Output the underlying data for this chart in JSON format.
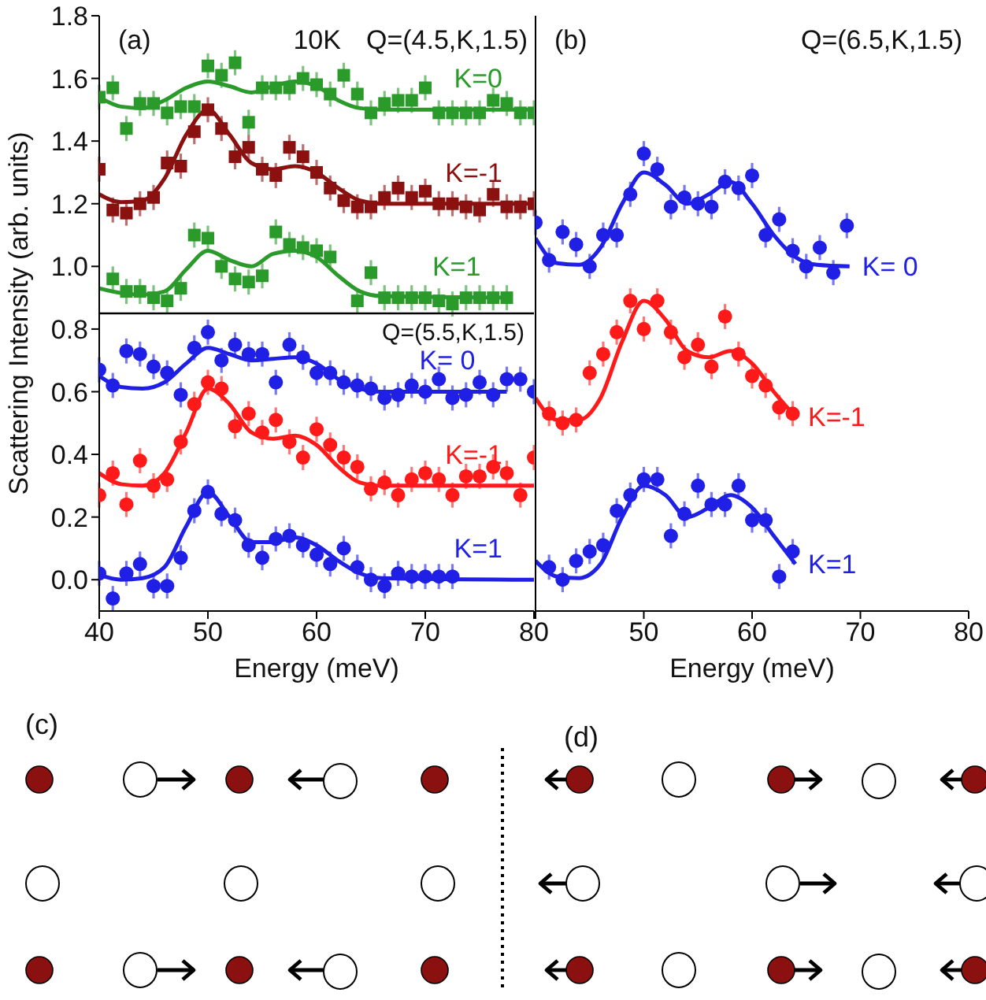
{
  "chart_data": [
    {
      "type": "scatter",
      "xlabel": "Energy (meV)",
      "ylabel": "Scattering Intensity (arb. units)",
      "xlim": [
        40,
        80
      ],
      "ylim": [
        -0.1,
        1.8
      ],
      "xticks": [
        40,
        50,
        60,
        70,
        80
      ],
      "yticks": [
        {
          "value": 0,
          "label": "0.0"
        },
        0.2,
        0.4,
        0.6,
        0.8,
        {
          "value": 1,
          "label": "1.0"
        },
        1.2,
        1.4,
        1.6,
        1.8
      ],
      "annotations": [
        "(a)",
        "10K",
        "Q=(4.5,K,1.5)"
      ],
      "ref_lines": [
        {
          "axis": "y",
          "value": 0.85,
          "label": "Q=(5.5,K,1.5)",
          "color": "#000000"
        }
      ],
      "series": [
        {
          "name": "K=0",
          "type": "scatter",
          "marker": "square",
          "color": "#2a9a2a",
          "x": [
            40,
            41.25,
            42.5,
            43.75,
            45,
            46.25,
            47.5,
            48.75,
            50,
            51.25,
            52.5,
            53.75,
            55,
            56.25,
            57.5,
            58.75,
            60,
            61.25,
            62.5,
            63.75,
            65,
            66.25,
            67.5,
            68.75,
            70,
            71.25,
            72.5,
            73.75,
            75,
            76.25,
            77.5,
            78.75,
            80
          ],
          "values": [
            1.54,
            1.57,
            1.44,
            1.52,
            1.52,
            1.49,
            1.51,
            1.51,
            1.64,
            1.61,
            1.65,
            1.46,
            1.57,
            1.57,
            1.57,
            1.6,
            1.58,
            1.55,
            1.61,
            1.55,
            1.49,
            1.52,
            1.53,
            1.53,
            1.57,
            1.49,
            1.49,
            1.49,
            1.49,
            1.53,
            1.52,
            1.49,
            1.49
          ],
          "errors": [
            0.04,
            0.04,
            0.04,
            0.04,
            0.04,
            0.04,
            0.04,
            0.04,
            0.04,
            0.04,
            0.04,
            0.04,
            0.04,
            0.04,
            0.04,
            0.04,
            0.04,
            0.04,
            0.04,
            0.04,
            0.04,
            0.04,
            0.04,
            0.04,
            0.04,
            0.04,
            0.04,
            0.04,
            0.04,
            0.04,
            0.04,
            0.04,
            0.04
          ]
        },
        {
          "type": "line",
          "color": "#2a9a2a",
          "x": [
            40,
            42,
            44,
            46,
            48,
            50,
            52,
            54,
            56,
            58,
            60,
            62,
            64,
            66,
            80
          ],
          "values": [
            1.54,
            1.51,
            1.505,
            1.53,
            1.57,
            1.59,
            1.575,
            1.555,
            1.575,
            1.59,
            1.575,
            1.53,
            1.505,
            1.5,
            1.5
          ]
        },
        {
          "name": "K=-1",
          "type": "scatter",
          "marker": "square",
          "color": "#8b1010",
          "x": [
            40,
            41.25,
            42.5,
            43.75,
            45,
            46.25,
            47.5,
            48.75,
            50,
            51.25,
            52.5,
            53.75,
            55,
            56.25,
            57.5,
            58.75,
            60,
            61.25,
            62.5,
            63.75,
            65,
            66.25,
            67.5,
            68.75,
            70,
            71.25,
            72.5,
            73.75,
            75,
            76.25,
            77.5,
            78.75,
            80
          ],
          "values": [
            1.31,
            1.18,
            1.17,
            1.2,
            1.22,
            1.33,
            1.32,
            1.43,
            1.5,
            1.44,
            1.35,
            1.38,
            1.31,
            1.29,
            1.38,
            1.35,
            1.3,
            1.25,
            1.21,
            1.19,
            1.19,
            1.22,
            1.25,
            1.22,
            1.24,
            1.2,
            1.2,
            1.19,
            1.18,
            1.23,
            1.19,
            1.19,
            1.2
          ],
          "errors": [
            0.04,
            0.04,
            0.04,
            0.04,
            0.04,
            0.04,
            0.04,
            0.04,
            0.04,
            0.04,
            0.04,
            0.04,
            0.04,
            0.04,
            0.04,
            0.04,
            0.04,
            0.04,
            0.04,
            0.04,
            0.04,
            0.04,
            0.04,
            0.04,
            0.04,
            0.04,
            0.04,
            0.04,
            0.04,
            0.04,
            0.04,
            0.04,
            0.04
          ]
        },
        {
          "type": "line",
          "color": "#8b1010",
          "x": [
            40,
            42,
            44,
            46,
            48,
            50,
            52,
            54,
            56,
            58,
            60,
            62,
            64,
            66,
            80
          ],
          "values": [
            1.23,
            1.205,
            1.21,
            1.28,
            1.42,
            1.5,
            1.42,
            1.33,
            1.31,
            1.32,
            1.3,
            1.25,
            1.21,
            1.2,
            1.2
          ]
        },
        {
          "name": "K=1",
          "type": "scatter",
          "marker": "square",
          "color": "#2a9a2a",
          "x": [
            41.25,
            42.5,
            43.75,
            45,
            46.25,
            47.5,
            48.75,
            50,
            51.25,
            52.5,
            53.75,
            55,
            56.25,
            57.5,
            58.75,
            60,
            61.25,
            63.75,
            65,
            66.25,
            67.5,
            68.75,
            70,
            71.25,
            72.5,
            73.75,
            75,
            76.25,
            77.5
          ],
          "values": [
            0.96,
            0.92,
            0.92,
            0.9,
            0.89,
            0.93,
            1.1,
            1.09,
            1.0,
            0.96,
            0.95,
            0.97,
            1.11,
            1.07,
            1.06,
            1.05,
            1.03,
            0.89,
            0.98,
            0.9,
            0.9,
            0.9,
            0.9,
            0.89,
            0.88,
            0.9,
            0.9,
            0.9,
            0.9
          ],
          "errors": [
            0.04,
            0.04,
            0.04,
            0.04,
            0.04,
            0.04,
            0.04,
            0.04,
            0.04,
            0.04,
            0.04,
            0.04,
            0.04,
            0.04,
            0.04,
            0.04,
            0.04,
            0.04,
            0.04,
            0.04,
            0.04,
            0.04,
            0.04,
            0.04,
            0.04,
            0.04,
            0.04,
            0.04,
            0.04
          ]
        },
        {
          "type": "line",
          "color": "#2a9a2a",
          "x": [
            40,
            42,
            44,
            46,
            48,
            50,
            52,
            54,
            56,
            58,
            60,
            62,
            64,
            66,
            78
          ],
          "values": [
            0.93,
            0.915,
            0.91,
            0.92,
            0.99,
            1.05,
            1.02,
            1.0,
            1.04,
            1.05,
            1.03,
            0.97,
            0.92,
            0.905,
            0.9
          ]
        },
        {
          "name": "K= 0",
          "type": "scatter",
          "marker": "circle",
          "color": "#1f1fe6",
          "x": [
            40,
            41.25,
            42.5,
            43.75,
            45,
            46.25,
            47.5,
            48.75,
            50,
            51.25,
            52.5,
            53.75,
            55,
            56.25,
            57.5,
            58.75,
            60,
            61.25,
            62.5,
            63.75,
            65,
            66.25,
            67.5,
            68.75,
            70,
            71.25,
            72.5,
            73.75,
            75,
            76.25,
            77.5,
            78.75,
            80
          ],
          "values": [
            0.67,
            0.62,
            0.73,
            0.72,
            0.68,
            0.66,
            0.59,
            0.74,
            0.79,
            0.7,
            0.75,
            0.72,
            0.72,
            0.63,
            0.75,
            0.71,
            0.66,
            0.66,
            0.63,
            0.62,
            0.61,
            0.58,
            0.59,
            0.62,
            0.6,
            0.64,
            0.58,
            0.59,
            0.63,
            0.59,
            0.64,
            0.64,
            0.6
          ],
          "errors": [
            0.04,
            0.04,
            0.04,
            0.04,
            0.04,
            0.04,
            0.04,
            0.04,
            0.04,
            0.04,
            0.04,
            0.04,
            0.04,
            0.04,
            0.04,
            0.04,
            0.04,
            0.04,
            0.04,
            0.04,
            0.04,
            0.04,
            0.04,
            0.04,
            0.04,
            0.04,
            0.04,
            0.04,
            0.04,
            0.04,
            0.04,
            0.04,
            0.04
          ]
        },
        {
          "type": "line",
          "color": "#1f1fe6",
          "x": [
            40,
            42,
            44,
            46,
            48,
            50,
            52,
            54,
            56,
            58,
            60,
            62,
            64,
            66,
            77.5
          ],
          "values": [
            0.65,
            0.615,
            0.61,
            0.63,
            0.69,
            0.74,
            0.72,
            0.7,
            0.705,
            0.71,
            0.69,
            0.64,
            0.61,
            0.6,
            0.6
          ]
        },
        {
          "name": "K=-1",
          "type": "scatter",
          "marker": "circle",
          "color": "#ff1a1a",
          "x": [
            40,
            41.25,
            42.5,
            43.75,
            45,
            46.25,
            47.5,
            48.75,
            50,
            51.25,
            52.5,
            53.75,
            55,
            56.25,
            57.5,
            58.75,
            60,
            61.25,
            62.5,
            63.75,
            65,
            66.25,
            67.5,
            68.75,
            70,
            71.25,
            72.5,
            73.75,
            75,
            76.25,
            77.5,
            78.75,
            80
          ],
          "values": [
            0.27,
            0.34,
            0.24,
            0.38,
            0.3,
            0.32,
            0.44,
            0.56,
            0.63,
            0.61,
            0.49,
            0.53,
            0.47,
            0.51,
            0.44,
            0.39,
            0.48,
            0.43,
            0.39,
            0.36,
            0.29,
            0.31,
            0.27,
            0.32,
            0.34,
            0.32,
            0.27,
            0.33,
            0.33,
            0.36,
            0.34,
            0.27,
            0.39
          ],
          "errors": [
            0.04,
            0.04,
            0.04,
            0.04,
            0.04,
            0.04,
            0.04,
            0.04,
            0.04,
            0.04,
            0.04,
            0.04,
            0.04,
            0.04,
            0.04,
            0.04,
            0.04,
            0.04,
            0.04,
            0.04,
            0.04,
            0.04,
            0.04,
            0.04,
            0.04,
            0.04,
            0.04,
            0.04,
            0.04,
            0.04,
            0.04,
            0.04,
            0.04
          ]
        },
        {
          "type": "line",
          "color": "#ff1a1a",
          "x": [
            40,
            42,
            44,
            46,
            48,
            50,
            52,
            54,
            56,
            58,
            60,
            62,
            64,
            66,
            80
          ],
          "values": [
            0.34,
            0.305,
            0.3,
            0.34,
            0.47,
            0.61,
            0.56,
            0.47,
            0.45,
            0.46,
            0.43,
            0.36,
            0.31,
            0.3,
            0.3
          ]
        },
        {
          "name": "K=1",
          "type": "scatter",
          "marker": "circle",
          "color": "#1f1fe6",
          "x": [
            40,
            41.25,
            42.5,
            43.75,
            45,
            46.25,
            47.5,
            48.75,
            50,
            51.25,
            52.5,
            53.75,
            55,
            56.25,
            57.5,
            58.75,
            60,
            61.25,
            62.5,
            63.75,
            65,
            66.25,
            67.5,
            68.75,
            70,
            71.25,
            72.5
          ],
          "values": [
            0.02,
            -0.06,
            0.02,
            0.05,
            -0.02,
            -0.02,
            0.07,
            0.22,
            0.28,
            0.21,
            0.19,
            0.11,
            0.07,
            0.13,
            0.14,
            0.11,
            0.08,
            0.05,
            0.1,
            0.04,
            0,
            -0.02,
            0.02,
            0.01,
            0.01,
            0.01,
            0.01
          ],
          "errors": [
            0.04,
            0.04,
            0.04,
            0.04,
            0.04,
            0.04,
            0.04,
            0.04,
            0.04,
            0.04,
            0.04,
            0.04,
            0.04,
            0.04,
            0.04,
            0.04,
            0.04,
            0.04,
            0.04,
            0.04,
            0.04,
            0.04,
            0.04,
            0.04,
            0.04,
            0.04,
            0.04
          ]
        },
        {
          "type": "line",
          "color": "#1f1fe6",
          "x": [
            40,
            42,
            44,
            46,
            48,
            50,
            52,
            54,
            56,
            58,
            60,
            62,
            64,
            66,
            80
          ],
          "values": [
            0.015,
            0,
            0.005,
            0.04,
            0.17,
            0.28,
            0.2,
            0.12,
            0.12,
            0.135,
            0.11,
            0.06,
            0.02,
            0.005,
            0
          ]
        }
      ]
    },
    {
      "type": "scatter",
      "xlabel": "Energy (meV)",
      "xlim": [
        40,
        80
      ],
      "ylim": [
        -0.1,
        1.8
      ],
      "xticks": [
        {
          "value": 40,
          "label": null
        },
        50,
        60,
        70,
        80
      ],
      "yticks": [
        0,
        0.2,
        0.4,
        0.6,
        0.8,
        1,
        1.2,
        1.4,
        1.6,
        1.8
      ],
      "tick_labels": "x",
      "annotations": [
        "(b)",
        "Q=(6.5,K,1.5)"
      ],
      "series": [
        {
          "name": "K= 0",
          "type": "scatter",
          "marker": "circle",
          "color": "#1f1fe6",
          "x": [
            40,
            41.25,
            42.5,
            43.75,
            45,
            46.25,
            47.5,
            48.75,
            50,
            51.25,
            52.5,
            53.75,
            55,
            56.25,
            57.5,
            58.75,
            60,
            61.25,
            62.5,
            63.75,
            65,
            66.25,
            67.5,
            68.75
          ],
          "values": [
            1.14,
            1.02,
            1.11,
            1.07,
            1.0,
            1.1,
            1.1,
            1.23,
            1.36,
            1.31,
            1.19,
            1.22,
            1.2,
            1.19,
            1.27,
            1.25,
            1.29,
            1.1,
            1.15,
            1.05,
            1.0,
            1.06,
            0.98,
            1.13
          ],
          "errors": [
            0.04,
            0.04,
            0.04,
            0.04,
            0.04,
            0.04,
            0.04,
            0.04,
            0.04,
            0.04,
            0.04,
            0.04,
            0.04,
            0.04,
            0.04,
            0.04,
            0.04,
            0.04,
            0.04,
            0.04,
            0.04,
            0.04,
            0.04,
            0.04
          ]
        },
        {
          "type": "line",
          "color": "#1f1fe6",
          "x": [
            40,
            42,
            44,
            46,
            48,
            50,
            52,
            54,
            56,
            58,
            60,
            62,
            64,
            66,
            69
          ],
          "values": [
            1.09,
            1.01,
            1.005,
            1.06,
            1.2,
            1.3,
            1.26,
            1.2,
            1.23,
            1.27,
            1.2,
            1.1,
            1.03,
            1.005,
            1.0
          ]
        },
        {
          "name": "K=-1",
          "type": "scatter",
          "marker": "circle",
          "color": "#ff1a1a",
          "x": [
            41.25,
            42.5,
            43.75,
            45,
            46.25,
            47.5,
            48.75,
            50,
            51.25,
            52.5,
            53.75,
            55,
            56.25,
            57.5,
            58.75,
            60,
            61.25,
            62.5,
            63.75
          ],
          "values": [
            0.53,
            0.5,
            0.51,
            0.66,
            0.72,
            0.79,
            0.89,
            0.8,
            0.89,
            0.79,
            0.71,
            0.75,
            0.68,
            0.84,
            0.72,
            0.65,
            0.62,
            0.55,
            0.53
          ],
          "errors": [
            0.04,
            0.04,
            0.04,
            0.04,
            0.04,
            0.04,
            0.04,
            0.04,
            0.04,
            0.04,
            0.04,
            0.04,
            0.04,
            0.04,
            0.04,
            0.04,
            0.04,
            0.04,
            0.04
          ]
        },
        {
          "type": "line",
          "color": "#ff1a1a",
          "x": [
            40,
            42,
            44,
            46,
            48,
            50,
            52,
            54,
            56,
            58,
            60,
            62,
            64
          ],
          "values": [
            0.58,
            0.51,
            0.51,
            0.58,
            0.76,
            0.89,
            0.83,
            0.73,
            0.71,
            0.73,
            0.69,
            0.6,
            0.52
          ]
        },
        {
          "name": "K=1",
          "type": "scatter",
          "marker": "circle",
          "color": "#1f1fe6",
          "x": [
            41.25,
            42.5,
            43.75,
            45,
            46.25,
            47.5,
            48.75,
            50,
            51.25,
            52.5,
            53.75,
            55,
            56.25,
            57.5,
            58.75,
            60,
            61.25,
            62.5,
            63.75
          ],
          "values": [
            0.04,
            0,
            0.06,
            0.09,
            0.11,
            0.22,
            0.27,
            0.32,
            0.32,
            0.14,
            0.21,
            0.3,
            0.24,
            0.24,
            0.3,
            0.19,
            0.19,
            0.01,
            0.09
          ],
          "errors": [
            0.04,
            0.04,
            0.04,
            0.04,
            0.04,
            0.04,
            0.04,
            0.04,
            0.04,
            0.04,
            0.04,
            0.04,
            0.04,
            0.04,
            0.04,
            0.04,
            0.04,
            0.04,
            0.04
          ]
        },
        {
          "type": "line",
          "color": "#1f1fe6",
          "x": [
            40,
            42,
            44,
            46,
            48,
            50,
            52,
            54,
            56,
            58,
            60,
            62,
            64
          ],
          "values": [
            0.06,
            0.01,
            0.005,
            0.05,
            0.2,
            0.3,
            0.27,
            0.2,
            0.23,
            0.27,
            0.23,
            0.14,
            0.05
          ]
        }
      ]
    },
    {
      "type": "other",
      "annotations": [
        "(c)",
        "(d)"
      ]
    }
  ]
}
